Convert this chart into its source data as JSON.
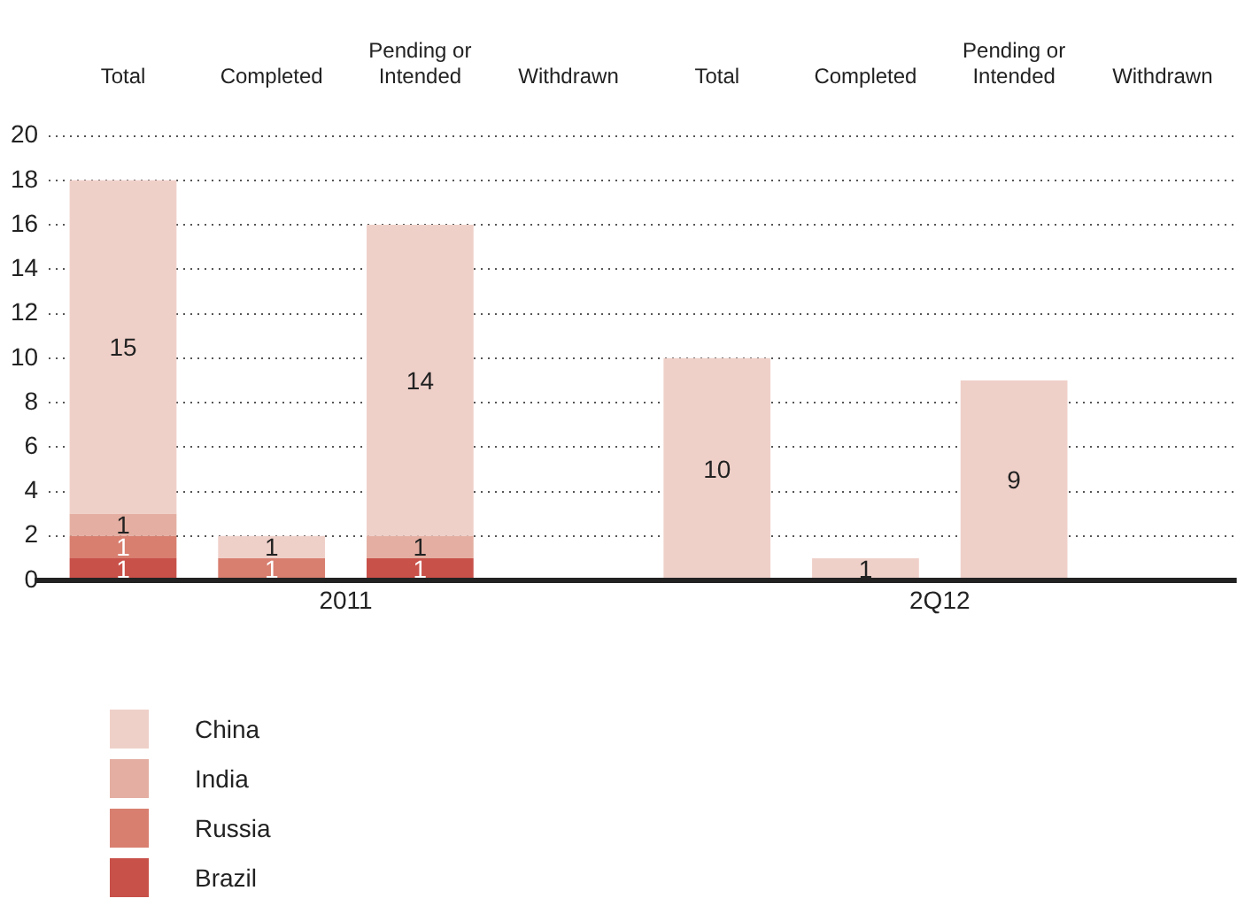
{
  "chart_data": {
    "type": "bar",
    "stacked": true,
    "categories": [
      "Total",
      "Completed",
      "Pending or Intended",
      "Withdrawn",
      "Total",
      "Completed",
      "Pending or Intended",
      "Withdrawn"
    ],
    "series": [
      {
        "name": "Brazil",
        "color": "#c8514a",
        "values": [
          1,
          null,
          1,
          null,
          null,
          null,
          null,
          null
        ]
      },
      {
        "name": "Russia",
        "color": "#d87f70",
        "values": [
          1,
          1,
          null,
          null,
          null,
          null,
          null,
          null
        ]
      },
      {
        "name": "India",
        "color": "#e4afa2",
        "values": [
          1,
          null,
          1,
          null,
          null,
          null,
          null,
          null
        ]
      },
      {
        "name": "China",
        "color": "#efd0c9",
        "values": [
          15,
          1,
          14,
          null,
          10,
          1,
          9,
          null
        ]
      }
    ],
    "ylim": [
      0,
      20
    ],
    "yticks": [
      0,
      2,
      4,
      6,
      8,
      10,
      12,
      14,
      16,
      18,
      20
    ],
    "grid": "y",
    "legend": "bottom left",
    "data_labels": true,
    "annotations": [
      "2011",
      "2Q12"
    ]
  }
}
